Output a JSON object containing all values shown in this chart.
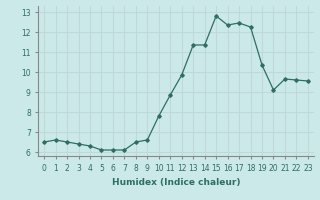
{
  "x": [
    0,
    1,
    2,
    3,
    4,
    5,
    6,
    7,
    8,
    9,
    10,
    11,
    12,
    13,
    14,
    15,
    16,
    17,
    18,
    19,
    20,
    21,
    22,
    23
  ],
  "y": [
    6.5,
    6.6,
    6.5,
    6.4,
    6.3,
    6.1,
    6.1,
    6.1,
    6.5,
    6.6,
    7.8,
    8.85,
    9.85,
    11.35,
    11.35,
    12.8,
    12.35,
    12.45,
    12.25,
    10.35,
    9.1,
    9.65,
    9.6,
    9.55
  ],
  "line_color": "#2e6e63",
  "marker": "D",
  "markersize": 1.8,
  "linewidth": 0.9,
  "xlabel": "Humidex (Indice chaleur)",
  "ylabel": "",
  "xlim": [
    -0.5,
    23.5
  ],
  "ylim": [
    5.8,
    13.3
  ],
  "yticks": [
    6,
    7,
    8,
    9,
    10,
    11,
    12,
    13
  ],
  "xticks": [
    0,
    1,
    2,
    3,
    4,
    5,
    6,
    7,
    8,
    9,
    10,
    11,
    12,
    13,
    14,
    15,
    16,
    17,
    18,
    19,
    20,
    21,
    22,
    23
  ],
  "xtick_labels": [
    "0",
    "1",
    "2",
    "3",
    "4",
    "5",
    "6",
    "7",
    "8",
    "9",
    "10",
    "11",
    "12",
    "13",
    "14",
    "15",
    "16",
    "17",
    "18",
    "19",
    "20",
    "21",
    "22",
    "23"
  ],
  "bg_color": "#cce9e9",
  "grid_color": "#c0d8d8",
  "label_fontsize": 6.5,
  "tick_fontsize": 5.5
}
